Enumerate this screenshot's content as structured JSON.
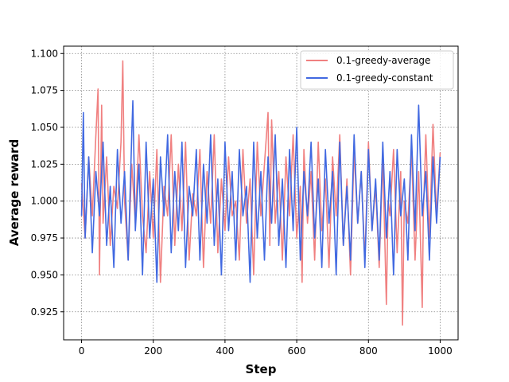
{
  "chart_data": {
    "type": "line",
    "xlabel": "Step",
    "ylabel": "Average reward",
    "xlim": [
      -50,
      1050
    ],
    "ylim": [
      0.906,
      1.105
    ],
    "xticks": [
      0,
      200,
      400,
      600,
      800,
      1000
    ],
    "yticks": [
      0.925,
      0.95,
      0.975,
      1.0,
      1.025,
      1.05,
      1.075,
      1.1
    ],
    "grid": true,
    "legend_position": "top-right",
    "series": [
      {
        "name": "0.1-greedy-average",
        "color": "#f08080",
        "x": [
          0,
          10,
          20,
          30,
          40,
          46,
          50,
          56,
          60,
          70,
          80,
          90,
          100,
          110,
          115,
          120,
          130,
          140,
          150,
          160,
          170,
          180,
          190,
          200,
          210,
          220,
          230,
          240,
          250,
          260,
          270,
          280,
          290,
          300,
          310,
          320,
          330,
          340,
          350,
          360,
          370,
          380,
          390,
          400,
          410,
          420,
          430,
          440,
          450,
          460,
          470,
          480,
          490,
          500,
          510,
          520,
          525,
          530,
          540,
          550,
          560,
          570,
          580,
          590,
          600,
          610,
          615,
          620,
          630,
          640,
          650,
          660,
          670,
          680,
          690,
          700,
          710,
          720,
          730,
          740,
          750,
          760,
          770,
          780,
          790,
          800,
          810,
          820,
          830,
          840,
          850,
          855,
          860,
          870,
          880,
          890,
          895,
          900,
          910,
          920,
          930,
          940,
          950,
          953,
          960,
          970,
          980,
          990,
          1000
        ],
        "y": [
          1.012,
          0.975,
          1.03,
          0.99,
          1.045,
          1.076,
          0.95,
          1.065,
          0.985,
          1.03,
          0.97,
          1.01,
          0.995,
          1.04,
          1.095,
          1.0,
          0.96,
          1.025,
          0.985,
          1.045,
          0.99,
          0.965,
          1.02,
          0.975,
          1.035,
          0.945,
          1.01,
          0.99,
          1.045,
          0.97,
          1.025,
          0.98,
          1.04,
          0.96,
          1.005,
          0.99,
          1.035,
          0.955,
          1.02,
          0.985,
          1.045,
          0.965,
          1.015,
          0.98,
          1.03,
          0.99,
          1.0,
          0.96,
          1.035,
          0.985,
          1.015,
          0.95,
          1.04,
          0.99,
          1.025,
          1.06,
          0.97,
          1.055,
          0.985,
          1.02,
          0.96,
          1.03,
          0.99,
          1.045,
          0.975,
          1.01,
          0.945,
          1.035,
          0.985,
          1.02,
          0.96,
          1.04,
          0.98,
          1.015,
          0.955,
          1.03,
          0.99,
          1.045,
          0.97,
          1.015,
          0.95,
          1.035,
          0.985,
          1.02,
          0.96,
          1.04,
          0.98,
          1.01,
          0.955,
          1.03,
          0.93,
          1.0,
          0.99,
          1.035,
          0.965,
          1.02,
          0.916,
          1.0,
          0.985,
          1.035,
          0.96,
          1.02,
          0.928,
          0.99,
          1.045,
          0.975,
          1.052,
          0.99,
          1.033
        ]
      },
      {
        "name": "0.1-greedy-constant",
        "color": "#4169e1",
        "x": [
          0,
          5,
          10,
          20,
          30,
          40,
          50,
          60,
          70,
          80,
          90,
          100,
          110,
          120,
          130,
          140,
          143,
          150,
          160,
          170,
          180,
          190,
          200,
          210,
          220,
          230,
          240,
          250,
          260,
          270,
          280,
          290,
          300,
          310,
          320,
          330,
          340,
          350,
          360,
          370,
          380,
          390,
          400,
          410,
          420,
          430,
          440,
          450,
          460,
          470,
          480,
          490,
          500,
          510,
          520,
          530,
          540,
          550,
          560,
          570,
          580,
          590,
          600,
          610,
          620,
          630,
          640,
          650,
          660,
          670,
          680,
          690,
          700,
          710,
          720,
          730,
          740,
          750,
          760,
          770,
          780,
          790,
          800,
          810,
          820,
          830,
          840,
          850,
          860,
          870,
          880,
          890,
          900,
          910,
          920,
          930,
          940,
          950,
          960,
          970,
          980,
          990,
          1000
        ],
        "y": [
          0.99,
          1.06,
          0.975,
          1.03,
          0.965,
          1.02,
          0.99,
          1.04,
          0.97,
          1.01,
          0.955,
          1.035,
          0.985,
          1.02,
          0.96,
          1.045,
          1.068,
          0.98,
          1.025,
          0.95,
          1.04,
          0.975,
          1.015,
          0.945,
          1.03,
          0.99,
          1.045,
          0.965,
          1.02,
          0.98,
          1.04,
          0.955,
          1.01,
          0.99,
          1.035,
          0.96,
          1.025,
          0.985,
          1.045,
          0.97,
          1.015,
          0.95,
          1.04,
          0.98,
          1.02,
          0.96,
          1.035,
          0.99,
          1.01,
          0.945,
          1.04,
          0.975,
          1.02,
          0.96,
          1.03,
          0.985,
          1.045,
          0.97,
          1.015,
          0.955,
          1.035,
          0.98,
          1.05,
          0.96,
          1.02,
          0.99,
          1.04,
          0.975,
          1.015,
          0.955,
          1.035,
          0.985,
          1.02,
          0.95,
          1.04,
          0.97,
          1.01,
          0.96,
          1.045,
          0.985,
          1.02,
          0.955,
          1.035,
          0.98,
          1.015,
          0.96,
          1.04,
          0.975,
          1.02,
          0.95,
          1.035,
          0.99,
          1.015,
          0.96,
          1.045,
          0.98,
          1.065,
          0.99,
          1.02,
          0.96,
          1.03,
          0.985,
          1.03
        ]
      }
    ]
  }
}
